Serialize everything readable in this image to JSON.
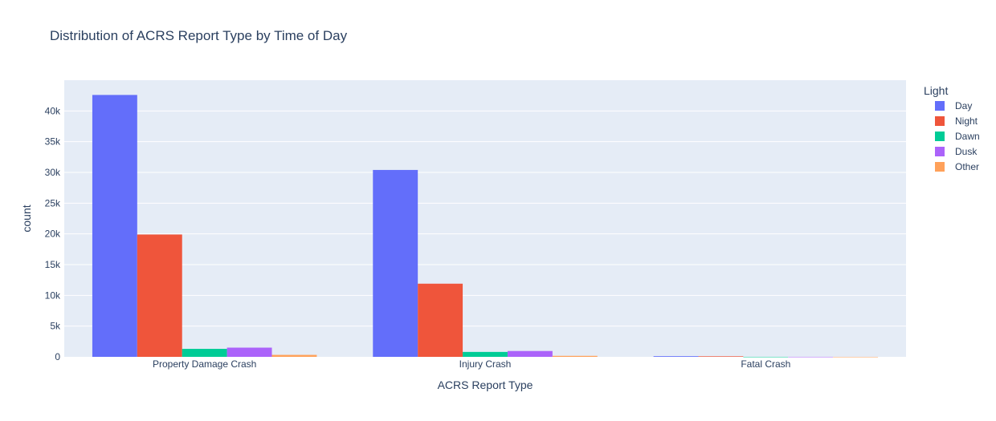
{
  "chart_data": {
    "type": "bar",
    "title": "Distribution of ACRS Report Type by Time of Day",
    "xlabel": "ACRS Report Type",
    "ylabel": "count",
    "categories": [
      "Property Damage Crash",
      "Injury Crash",
      "Fatal Crash"
    ],
    "ylim": [
      0,
      45000
    ],
    "yticks": [
      0,
      5000,
      10000,
      15000,
      20000,
      25000,
      30000,
      35000,
      40000
    ],
    "ytick_labels": [
      "0",
      "5k",
      "10k",
      "15k",
      "20k",
      "25k",
      "30k",
      "35k",
      "40k"
    ],
    "grid": true,
    "legend": {
      "title": "Light",
      "position": "right"
    },
    "series": [
      {
        "name": "Day",
        "color": "#636efa",
        "values": [
          42600,
          30400,
          110
        ]
      },
      {
        "name": "Night",
        "color": "#ef553b",
        "values": [
          19900,
          11900,
          90
        ]
      },
      {
        "name": "Dawn",
        "color": "#00cc96",
        "values": [
          1300,
          800,
          5
        ]
      },
      {
        "name": "Dusk",
        "color": "#ab63fa",
        "values": [
          1500,
          950,
          5
        ]
      },
      {
        "name": "Other",
        "color": "#ffa15a",
        "values": [
          320,
          160,
          2
        ]
      }
    ]
  }
}
